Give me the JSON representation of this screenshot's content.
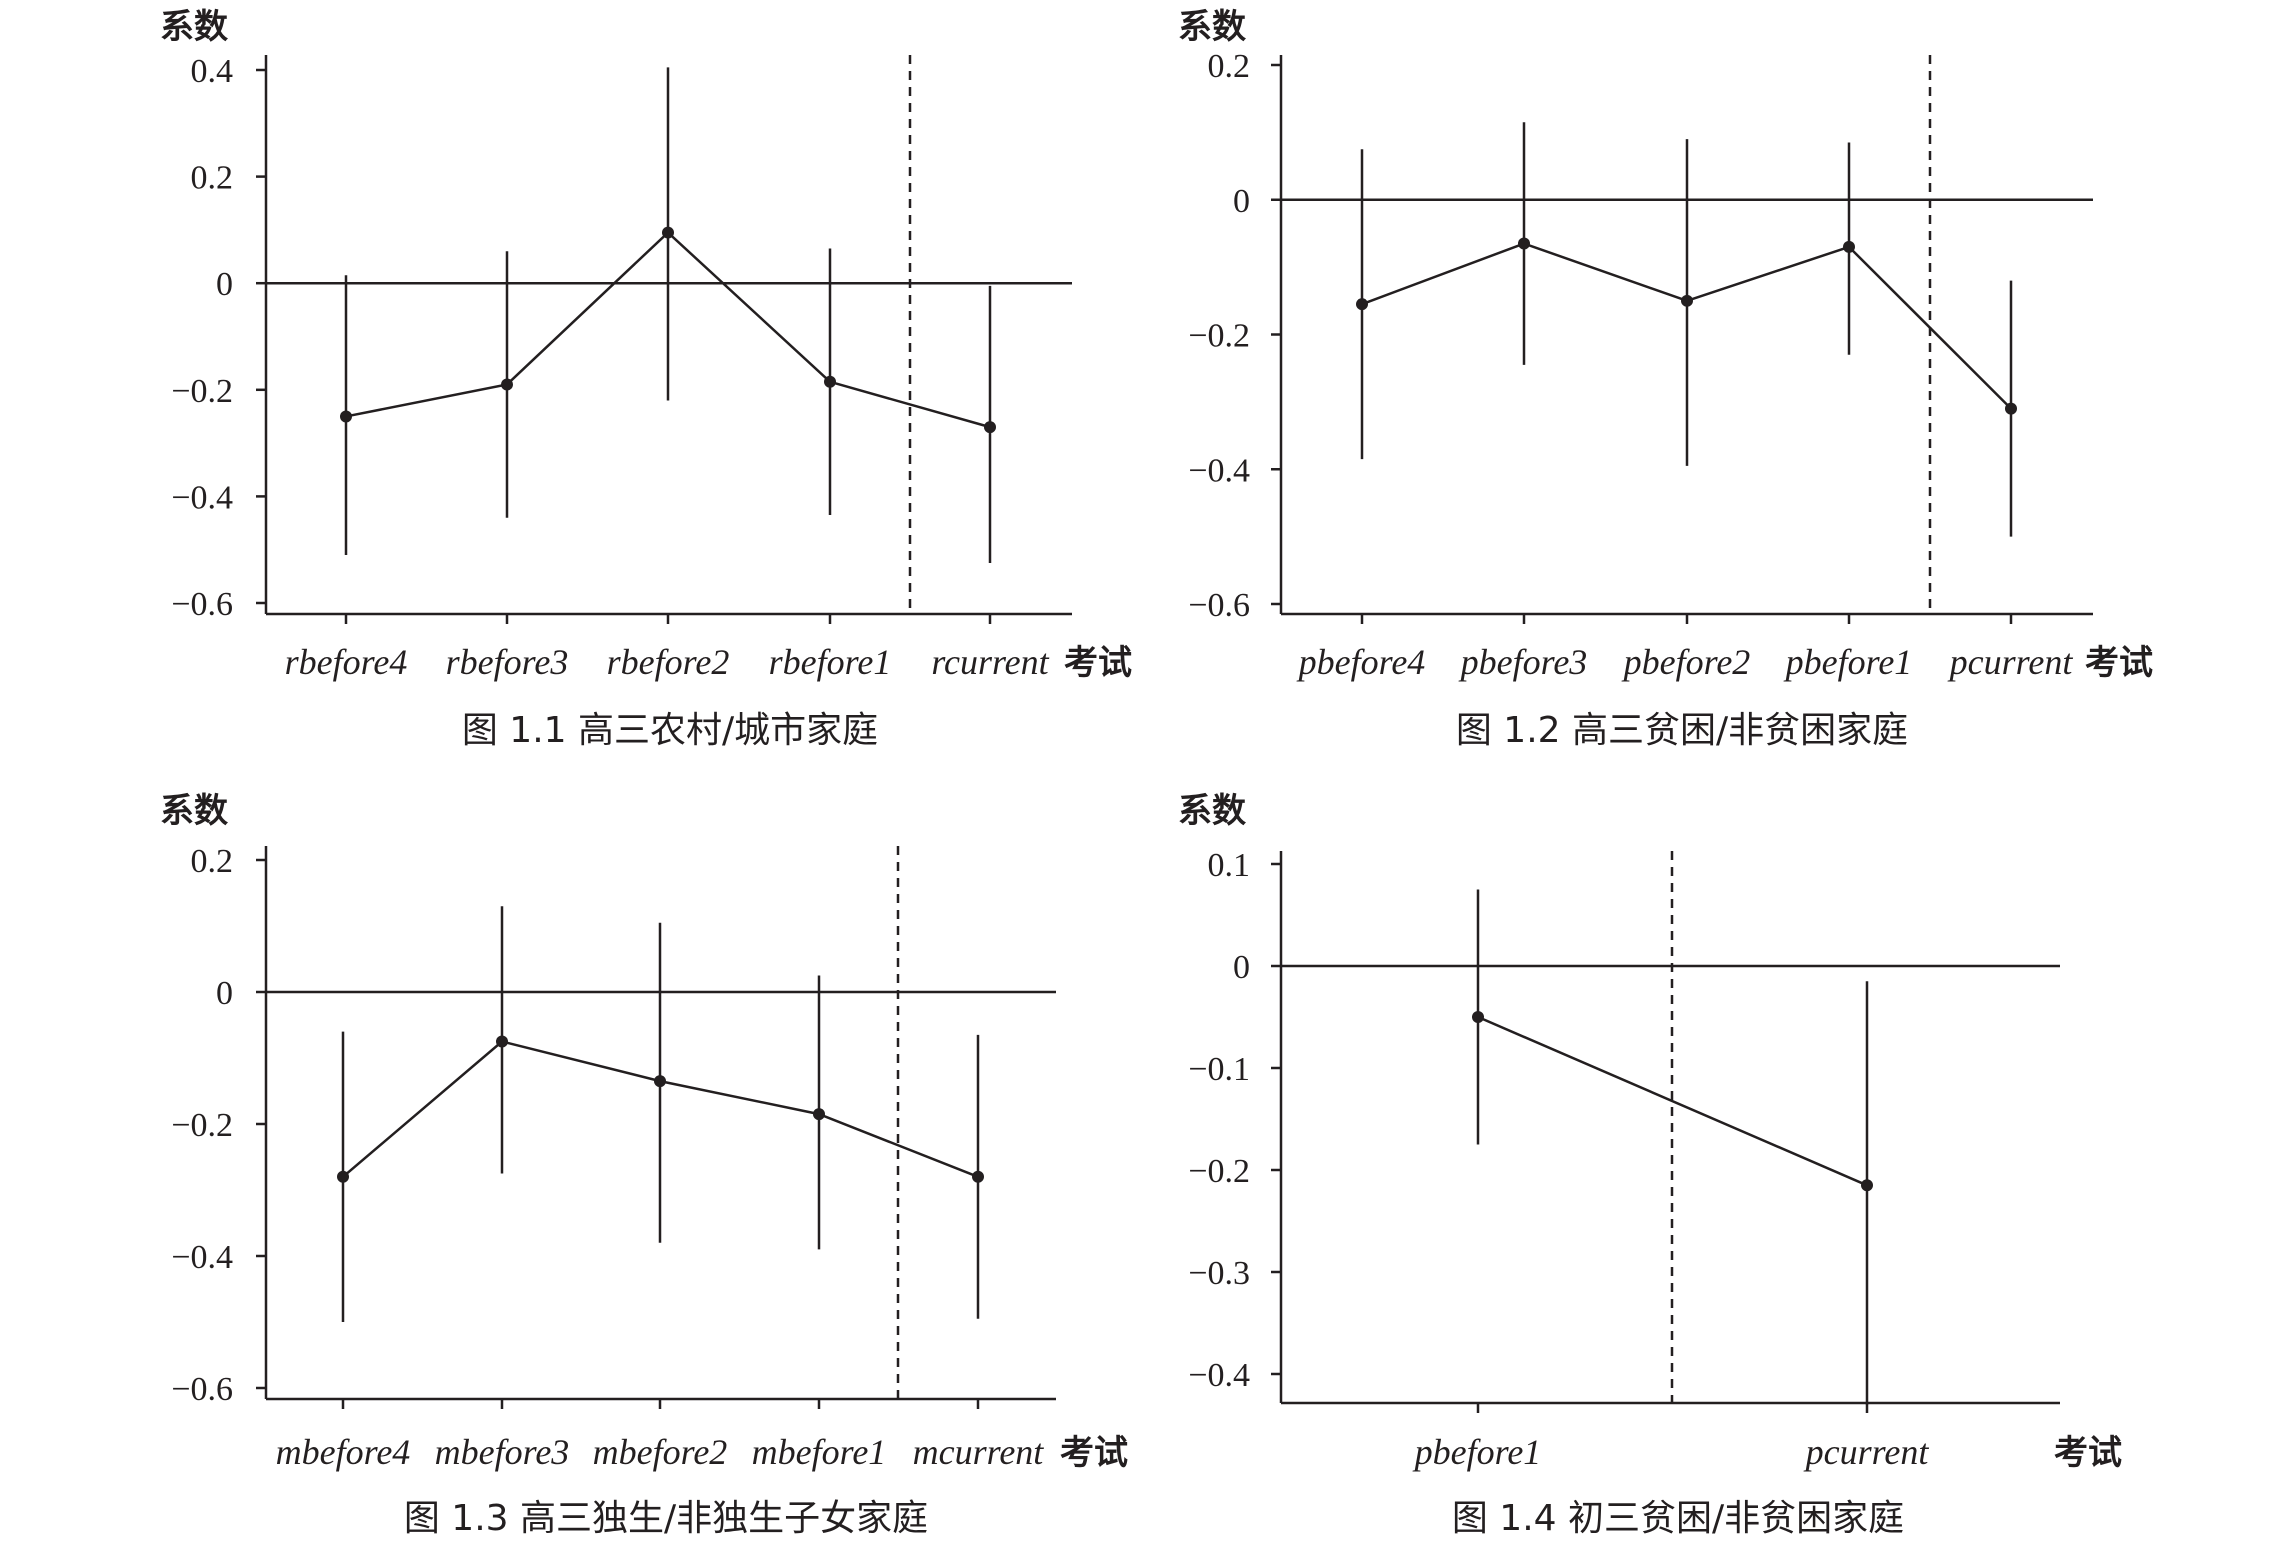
{
  "chart_data": [
    {
      "type": "line",
      "title": "图 1.1 高三农村/城市家庭",
      "ylabel": "系数",
      "xlabel": "考试",
      "categories": [
        "rbefore4",
        "rbefore3",
        "rbefore2",
        "rbefore1",
        "rcurrent"
      ],
      "values": [
        -0.25,
        -0.19,
        0.095,
        -0.185,
        -0.27
      ],
      "ci_low": [
        -0.51,
        -0.44,
        -0.22,
        -0.435,
        -0.525
      ],
      "ci_high": [
        0.015,
        0.06,
        0.405,
        0.065,
        -0.005
      ],
      "ylim": [
        -0.62,
        0.42
      ],
      "yticks": [
        0.4,
        0.2,
        0,
        -0.2,
        -0.4,
        -0.6
      ],
      "ytick_labels": [
        "0.4",
        "0.2",
        "0",
        "−0.2",
        "−0.4",
        "−0.6"
      ],
      "reference_line_y": 0,
      "dashed_line_between": [
        3,
        4
      ]
    },
    {
      "type": "line",
      "title": "图 1.2 高三贫困/非贫困家庭",
      "ylabel": "系数",
      "xlabel": "考试",
      "categories": [
        "pbefore4",
        "pbefore3",
        "pbefore2",
        "pbefore1",
        "pcurrent"
      ],
      "values": [
        -0.155,
        -0.065,
        -0.15,
        -0.07,
        -0.31
      ],
      "ci_low": [
        -0.385,
        -0.245,
        -0.395,
        -0.23,
        -0.5
      ],
      "ci_high": [
        0.075,
        0.115,
        0.09,
        0.085,
        -0.12
      ],
      "ylim": [
        -0.62,
        0.21
      ],
      "yticks": [
        0.2,
        0,
        -0.2,
        -0.4,
        -0.6
      ],
      "ytick_labels": [
        "0.2",
        "0",
        "−0.2",
        "−0.4",
        "−0.6"
      ],
      "reference_line_y": 0,
      "dashed_line_between": [
        3,
        4
      ]
    },
    {
      "type": "line",
      "title": "图 1.3 高三独生/非独生子女家庭",
      "ylabel": "系数",
      "xlabel": "考试",
      "categories": [
        "mbefore4",
        "mbefore3",
        "mbefore2",
        "mbefore1",
        "mcurrent"
      ],
      "values": [
        -0.28,
        -0.075,
        -0.135,
        -0.185,
        -0.28
      ],
      "ci_low": [
        -0.5,
        -0.275,
        -0.38,
        -0.39,
        -0.495
      ],
      "ci_high": [
        -0.06,
        0.13,
        0.105,
        0.025,
        -0.065
      ],
      "ylim": [
        -0.62,
        0.21
      ],
      "yticks": [
        0.2,
        0,
        -0.2,
        -0.4,
        -0.6
      ],
      "ytick_labels": [
        "0.2",
        "0",
        "−0.2",
        "−0.4",
        "−0.6"
      ],
      "reference_line_y": 0,
      "dashed_line_between": [
        3,
        4
      ]
    },
    {
      "type": "line",
      "title": "图 1.4 初三贫困/非贫困家庭",
      "ylabel": "系数",
      "xlabel": "考试",
      "categories": [
        "pbefore1",
        "pcurrent"
      ],
      "values": [
        -0.05,
        -0.215
      ],
      "ci_low": [
        -0.175,
        -0.43
      ],
      "ci_high": [
        0.075,
        -0.015
      ],
      "ylim": [
        -0.43,
        0.11
      ],
      "yticks": [
        0.1,
        0,
        -0.1,
        -0.2,
        -0.3,
        -0.4
      ],
      "ytick_labels": [
        "0.1",
        "0",
        "−0.1",
        "−0.2",
        "−0.3",
        "−0.4"
      ],
      "reference_line_y": 0,
      "dashed_line_between": [
        0,
        1
      ]
    }
  ]
}
